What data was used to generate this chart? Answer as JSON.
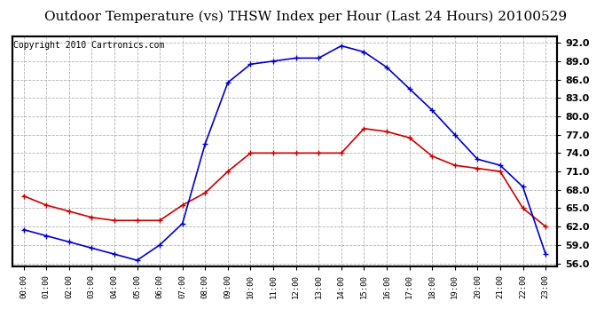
{
  "title": "Outdoor Temperature (vs) THSW Index per Hour (Last 24 Hours) 20100529",
  "copyright": "Copyright 2010 Cartronics.com",
  "hours": [
    "00:00",
    "01:00",
    "02:00",
    "03:00",
    "04:00",
    "05:00",
    "06:00",
    "07:00",
    "08:00",
    "09:00",
    "10:00",
    "11:00",
    "12:00",
    "13:00",
    "14:00",
    "15:00",
    "16:00",
    "17:00",
    "18:00",
    "19:00",
    "20:00",
    "21:00",
    "22:00",
    "23:00"
  ],
  "temp": [
    67.0,
    65.5,
    64.5,
    63.5,
    63.0,
    63.0,
    63.0,
    65.5,
    67.5,
    71.0,
    74.0,
    74.0,
    74.0,
    74.0,
    74.0,
    78.0,
    77.5,
    76.5,
    73.5,
    72.0,
    71.5,
    71.0,
    65.0,
    62.0
  ],
  "thsw": [
    61.5,
    60.5,
    59.5,
    58.5,
    57.5,
    56.5,
    59.0,
    62.5,
    75.5,
    85.5,
    88.5,
    89.0,
    89.5,
    89.5,
    91.5,
    90.5,
    88.0,
    84.5,
    81.0,
    77.0,
    73.0,
    72.0,
    68.5,
    57.5
  ],
  "temp_color": "#cc0000",
  "thsw_color": "#0000cc",
  "background_color": "#ffffff",
  "plot_bg_color": "#ffffff",
  "grid_color": "#aaaaaa",
  "ylim": [
    55.5,
    93.0
  ],
  "yticks": [
    56.0,
    59.0,
    62.0,
    65.0,
    68.0,
    71.0,
    74.0,
    77.0,
    80.0,
    83.0,
    86.0,
    89.0,
    92.0
  ],
  "title_fontsize": 11,
  "copyright_fontsize": 7,
  "marker": "+"
}
